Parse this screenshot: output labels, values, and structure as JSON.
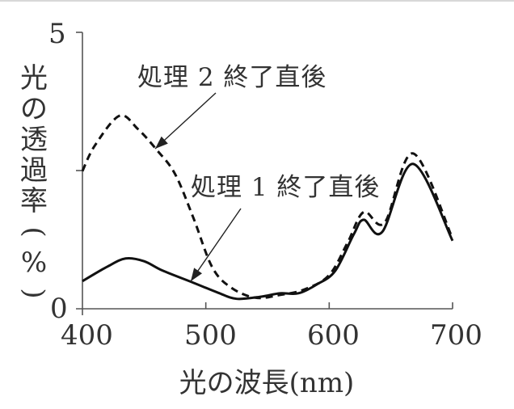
{
  "chart_data": {
    "type": "line",
    "title": "",
    "xlabel": "光の波長(nm)",
    "ylabel": "光の透過率(%)",
    "xlim": [
      400,
      700
    ],
    "ylim": [
      0,
      5
    ],
    "x_ticks": [
      400,
      500,
      600,
      700
    ],
    "x_tick_labels": [
      "400",
      "500",
      "600",
      "700"
    ],
    "y_ticks": [
      0,
      2.5,
      5
    ],
    "y_tick_labels": [
      "0",
      "",
      "5"
    ],
    "grid": false,
    "legend": "none (annotations with arrows)",
    "series": [
      {
        "name": "処理1終了直後",
        "style": "solid",
        "x": [
          400,
          420,
          435,
          450,
          465,
          490,
          510,
          525,
          545,
          560,
          575,
          590,
          605,
          620,
          628,
          643,
          668,
          700
        ],
        "values": [
          0.5,
          0.76,
          0.91,
          0.86,
          0.69,
          0.47,
          0.29,
          0.18,
          0.22,
          0.28,
          0.28,
          0.44,
          0.69,
          1.35,
          1.61,
          1.39,
          2.62,
          1.23
        ]
      },
      {
        "name": "処理2終了直後",
        "style": "dashed",
        "x": [
          400,
          410,
          430,
          445,
          460,
          475,
          490,
          505,
          520,
          540,
          560,
          580,
          600,
          615,
          628,
          645,
          668,
          700
        ],
        "values": [
          2.49,
          2.95,
          3.49,
          3.25,
          2.88,
          2.44,
          1.64,
          0.76,
          0.39,
          0.2,
          0.25,
          0.35,
          0.61,
          1.2,
          1.75,
          1.56,
          2.81,
          1.27
        ]
      }
    ],
    "annotations": [
      {
        "text": "処理2終了直後",
        "points_to_series": "処理2終了直後",
        "arrow_target_x": 460
      },
      {
        "text": "処理1終了直後",
        "points_to_series": "処理1終了直後",
        "arrow_target_x": 490
      }
    ]
  },
  "labels": {
    "y_axis_chars": [
      "光",
      "の",
      "透",
      "過",
      "率",
      "(",
      "%",
      ")"
    ],
    "x_axis": "光の波長(nm)",
    "y_tick_top": "5",
    "y_tick_bottom": "0",
    "x_ticks": [
      "400",
      "500",
      "600",
      "700"
    ],
    "annotation_2": "処理 2 終了直後",
    "annotation_1": "処理 1 終了直後"
  }
}
